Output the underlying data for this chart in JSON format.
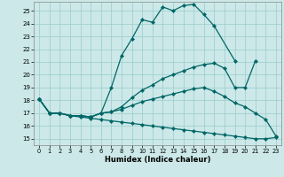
{
  "xlabel": "Humidex (Indice chaleur)",
  "background_color": "#cce8e8",
  "grid_color": "#99cccc",
  "line_color": "#006666",
  "xlim": [
    -0.5,
    23.5
  ],
  "ylim": [
    14.5,
    25.7
  ],
  "yticks": [
    15,
    16,
    17,
    18,
    19,
    20,
    21,
    22,
    23,
    24,
    25
  ],
  "xticks": [
    0,
    1,
    2,
    3,
    4,
    5,
    6,
    7,
    8,
    9,
    10,
    11,
    12,
    13,
    14,
    15,
    16,
    17,
    18,
    19,
    20,
    21,
    22,
    23
  ],
  "line1_y": [
    18.1,
    17.0,
    17.0,
    16.8,
    16.8,
    16.7,
    17.0,
    19.0,
    21.5,
    22.8,
    24.3,
    24.1,
    25.3,
    25.0,
    25.4,
    25.5,
    24.7,
    23.8,
    null,
    21.1,
    null,
    null,
    null,
    null
  ],
  "line2_y": [
    18.1,
    17.0,
    17.0,
    16.8,
    16.8,
    16.7,
    17.0,
    17.1,
    17.5,
    18.2,
    18.8,
    19.2,
    19.7,
    20.0,
    20.3,
    20.6,
    20.8,
    20.9,
    20.5,
    19.0,
    19.0,
    21.1,
    null,
    null
  ],
  "line3_y": [
    18.1,
    17.0,
    17.0,
    16.8,
    16.8,
    16.7,
    17.0,
    17.1,
    17.3,
    17.6,
    17.9,
    18.1,
    18.3,
    18.5,
    18.7,
    18.9,
    19.0,
    18.7,
    18.3,
    17.8,
    17.5,
    17.0,
    16.5,
    15.2
  ],
  "line4_y": [
    18.1,
    17.0,
    17.0,
    16.8,
    16.7,
    16.6,
    16.5,
    16.4,
    16.3,
    16.2,
    16.1,
    16.0,
    15.9,
    15.8,
    15.7,
    15.6,
    15.5,
    15.4,
    15.3,
    15.2,
    15.1,
    15.0,
    15.0,
    15.1
  ]
}
